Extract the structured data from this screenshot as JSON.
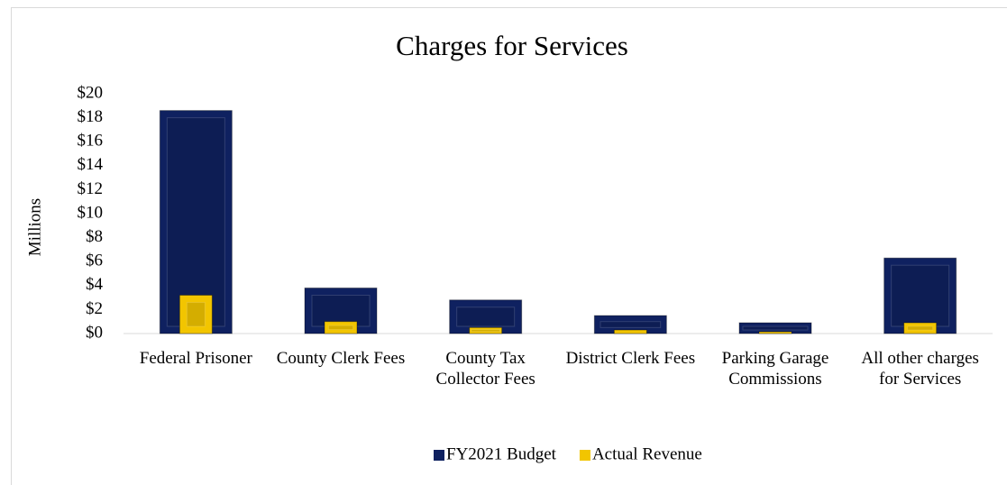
{
  "chart_data": {
    "type": "bar",
    "title": "Charges for Services",
    "y_label": "Millions",
    "categories": [
      "Federal Prisoner",
      "County Clerk Fees",
      "County Tax Collector Fees",
      "District Clerk Fees",
      "Parking Garage Commissions",
      "All other charges for Services"
    ],
    "series": [
      {
        "name": "FY2021 Budget",
        "color": "#0f2160",
        "values": [
          18.6,
          3.8,
          2.8,
          1.5,
          0.9,
          6.3
        ]
      },
      {
        "name": "Actual Revenue",
        "color": "#f2c500",
        "values": [
          3.2,
          1.0,
          0.5,
          0.3,
          0.15,
          0.9
        ]
      }
    ],
    "ylim": [
      0,
      20
    ],
    "yticks": [
      {
        "value": 0,
        "label": "$0"
      },
      {
        "value": 2,
        "label": "$2"
      },
      {
        "value": 4,
        "label": "$4"
      },
      {
        "value": 6,
        "label": "$6"
      },
      {
        "value": 8,
        "label": "$8"
      },
      {
        "value": 10,
        "label": "$10"
      },
      {
        "value": 12,
        "label": "$12"
      },
      {
        "value": 14,
        "label": "$14"
      },
      {
        "value": 16,
        "label": "$16"
      },
      {
        "value": 18,
        "label": "$18"
      },
      {
        "value": 20,
        "label": "$20"
      }
    ],
    "legend": "bottom"
  }
}
